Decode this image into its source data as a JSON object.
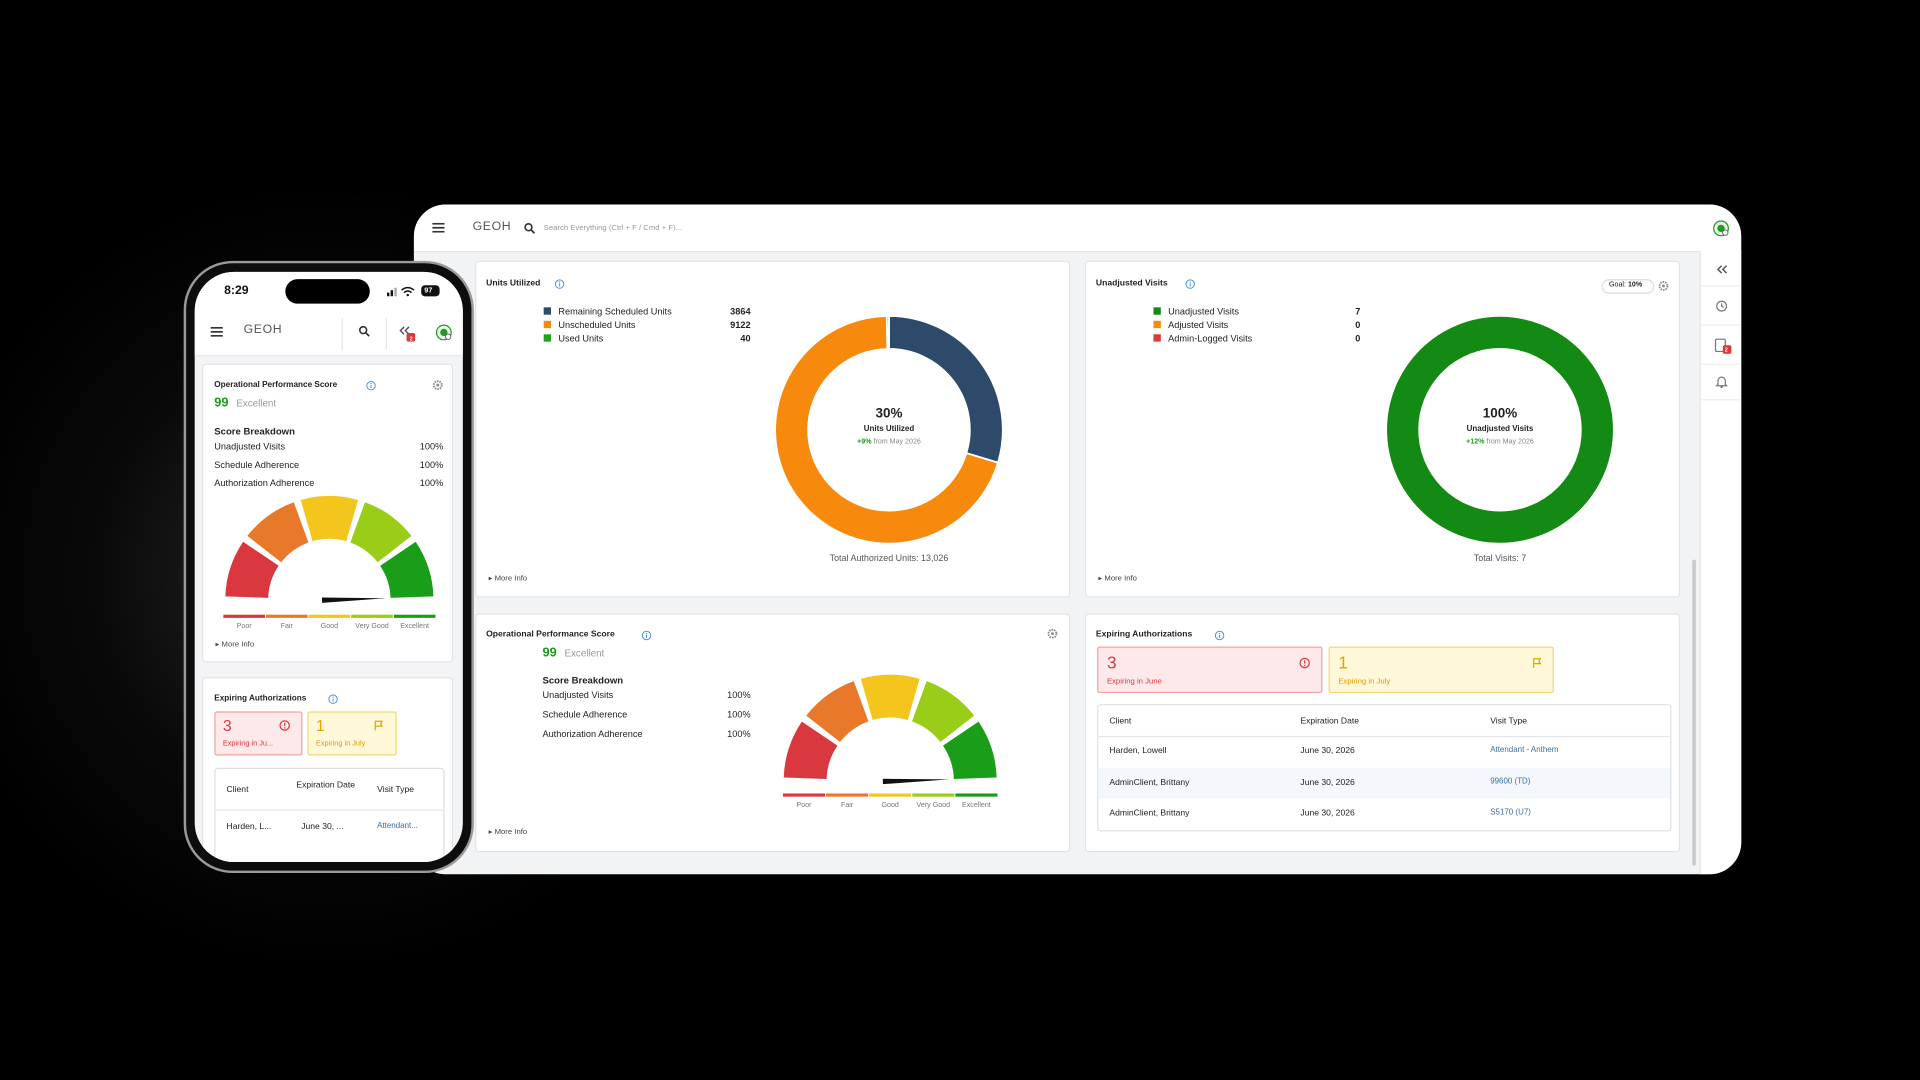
{
  "desktop": {
    "logo": "GEOH",
    "search_placeholder": "Search Everything (Ctrl + F / Cmd + F)...",
    "sidebar_badge": "2",
    "units_utilized": {
      "title": "Units Utilized",
      "legend": [
        {
          "name": "Remaining Scheduled Units",
          "value": 3864,
          "color": "#2e4a6b"
        },
        {
          "name": "Unscheduled Units",
          "value": 9122,
          "color": "#f7890c"
        },
        {
          "name": "Used Units",
          "value": 40,
          "color": "#23a123"
        }
      ],
      "center_value": "30%",
      "center_label": "Units Utilized",
      "change": "+9%",
      "change_note": "from May 2026",
      "total": "Total Authorized Units: 13,026",
      "more_info": "More Info"
    },
    "unadjusted_visits": {
      "title": "Unadjusted Visits",
      "goal_label": "Goal:",
      "goal_value": "10%",
      "legend": [
        {
          "name": "Unadjusted Visits",
          "value": 7,
          "color": "#138a13"
        },
        {
          "name": "Adjusted Visits",
          "value": 0,
          "color": "#f7890c"
        },
        {
          "name": "Admin-Logged Visits",
          "value": 0,
          "color": "#d8383e"
        }
      ],
      "center_value": "100%",
      "center_label": "Unadjusted Visits",
      "change": "+12%",
      "change_note": "from May 2026",
      "total": "Total Visits: 7",
      "more_info": "More Info"
    },
    "performance": {
      "title": "Operational Performance Score",
      "score": 99,
      "rating": "Excellent",
      "breakdown_title": "Score Breakdown",
      "rows": [
        {
          "label": "Unadjusted Visits",
          "value": "100%"
        },
        {
          "label": "Schedule Adherence",
          "value": "100%"
        },
        {
          "label": "Authorization Adherence",
          "value": "100%"
        }
      ],
      "gauge_labels": [
        "Poor",
        "Fair",
        "Good",
        "Very Good",
        "Excellent"
      ],
      "more_info": "More Info"
    },
    "expiring": {
      "title": "Expiring Authorizations",
      "cards": [
        {
          "count": 3,
          "label": "Expiring in June"
        },
        {
          "count": 1,
          "label": "Expiring in July"
        }
      ],
      "table": {
        "headers": [
          "Client",
          "Expiration Date",
          "Visit Type"
        ],
        "rows": [
          [
            "Harden, Lowell",
            "June 30, 2026",
            "Attendant - Anthem"
          ],
          [
            "AdminClient, Brittany",
            "June 30, 2026",
            "99600 (TD)"
          ],
          [
            "AdminClient, Brittany",
            "June 30, 2026",
            "S5170 (U7)"
          ]
        ]
      }
    }
  },
  "phone": {
    "time": "8:29",
    "battery": "97",
    "logo": "GEOH",
    "badge": "2",
    "performance": {
      "title": "Operational Performance Score",
      "score": 99,
      "rating": "Excellent",
      "breakdown_title": "Score Breakdown",
      "rows": [
        {
          "label": "Unadjusted Visits",
          "value": "100%"
        },
        {
          "label": "Schedule Adherence",
          "value": "100%"
        },
        {
          "label": "Authorization Adherence",
          "value": "100%"
        }
      ],
      "gauge_labels": [
        "Poor",
        "Fair",
        "Good",
        "Very Good",
        "Excellent"
      ],
      "more_info": "More Info"
    },
    "expiring": {
      "title": "Expiring Authorizations",
      "cards": [
        {
          "count": 3,
          "label": "Expiring in Ju..."
        },
        {
          "count": 1,
          "label": "Expiring in July"
        }
      ],
      "table": {
        "headers": [
          "Client",
          "Expiration Date",
          "Visit Type"
        ],
        "rows": [
          [
            "Harden, L...",
            "June 30, ...",
            "Attendant..."
          ]
        ]
      }
    }
  }
}
